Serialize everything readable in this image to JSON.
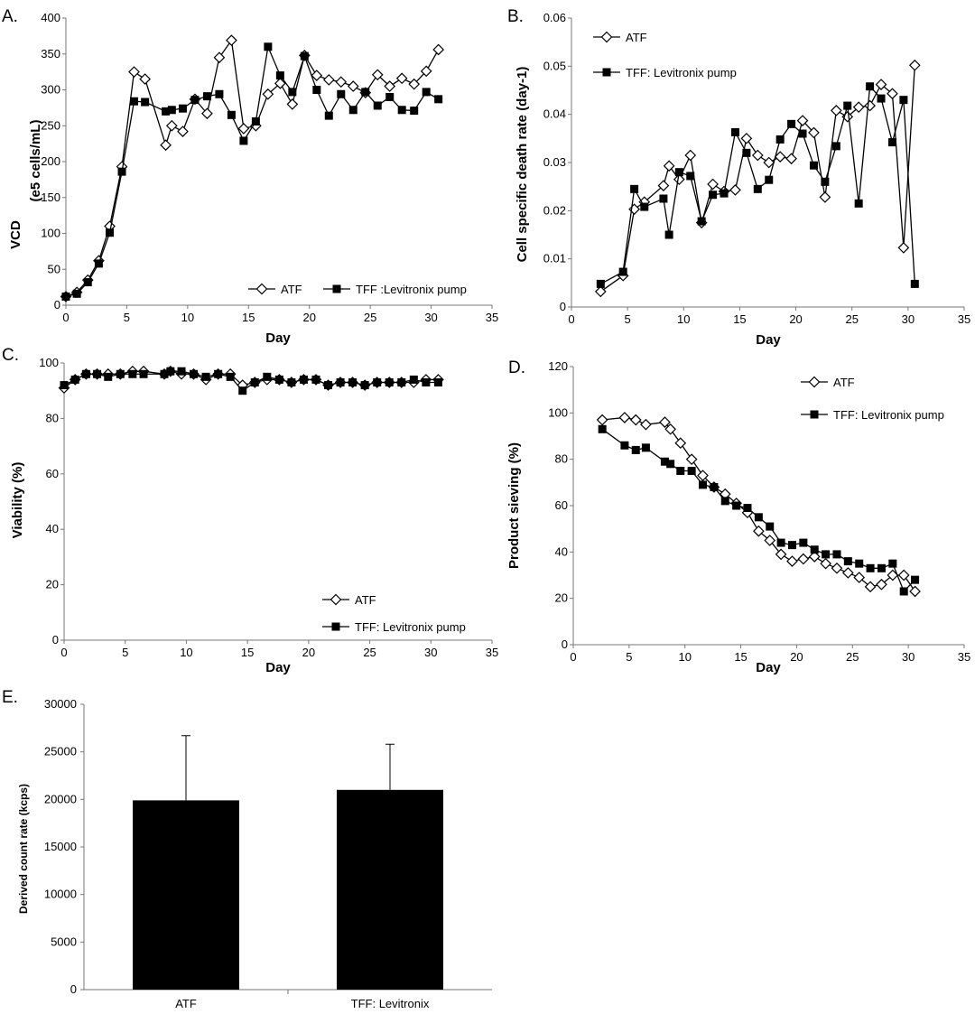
{
  "chart_data": [
    {
      "panel": "A.",
      "type": "line",
      "xlabel": "Day",
      "ylabel": "VCD",
      "ylabel2": "(e5 cells/mL)",
      "xlim": [
        0,
        35
      ],
      "xticks": [
        0,
        5,
        10,
        15,
        20,
        25,
        30,
        35
      ],
      "ylim": [
        0,
        400
      ],
      "yticks": [
        0,
        50,
        100,
        150,
        200,
        250,
        300,
        350,
        400
      ],
      "legend_pos": "bottom-right",
      "legend_layout": "row",
      "series": [
        {
          "name": "ATF",
          "marker": "diamond",
          "x": [
            0,
            0.9,
            1.8,
            2.7,
            3.6,
            4.6,
            5.6,
            6.5,
            8.2,
            8.7,
            9.6,
            10.6,
            11.6,
            12.6,
            13.6,
            14.6,
            15.6,
            16.6,
            17.6,
            18.6,
            19.6,
            20.6,
            21.6,
            22.6,
            23.6,
            24.6,
            25.6,
            26.6,
            27.6,
            28.6,
            29.6,
            30.6
          ],
          "y": [
            12,
            18,
            35,
            62,
            110,
            193,
            325,
            315,
            223,
            250,
            242,
            287,
            267,
            345,
            369,
            246,
            250,
            294,
            309,
            280,
            348,
            320,
            314,
            311,
            305,
            296,
            321,
            305,
            316,
            308,
            326,
            356
          ]
        },
        {
          "name": "TFF :Levitronix pump",
          "marker": "square",
          "x": [
            0,
            0.9,
            1.8,
            2.7,
            3.6,
            4.6,
            5.6,
            6.5,
            8.2,
            8.7,
            9.6,
            10.6,
            11.6,
            12.6,
            13.6,
            14.6,
            15.6,
            16.6,
            17.6,
            18.6,
            19.6,
            20.6,
            21.6,
            22.6,
            23.6,
            24.6,
            25.6,
            26.6,
            27.6,
            28.6,
            29.6,
            30.6
          ],
          "y": [
            12,
            16,
            32,
            58,
            101,
            186,
            284,
            283,
            270,
            272,
            274,
            286,
            291,
            294,
            265,
            229,
            256,
            360,
            320,
            297,
            347,
            300,
            264,
            294,
            272,
            297,
            278,
            290,
            272,
            271,
            297,
            287
          ]
        }
      ]
    },
    {
      "panel": "B.",
      "type": "line",
      "xlabel": "Day",
      "ylabel": "Cell specific death rate (day-1)",
      "xlim": [
        0,
        35
      ],
      "xticks": [
        0,
        5,
        10,
        15,
        20,
        25,
        30,
        35
      ],
      "ylim": [
        0,
        0.06
      ],
      "yticks": [
        0,
        0.01,
        0.02,
        0.03,
        0.04,
        0.05,
        0.06
      ],
      "legend_pos": "top-left",
      "legend_layout": "column",
      "series": [
        {
          "name": "ATF",
          "marker": "diamond",
          "x": [
            2.6,
            4.6,
            5.6,
            6.5,
            8.2,
            8.7,
            9.6,
            10.6,
            11.6,
            12.6,
            13.6,
            14.6,
            15.6,
            16.6,
            17.6,
            18.6,
            19.6,
            20.6,
            21.6,
            22.6,
            23.6,
            24.6,
            25.6,
            26.6,
            27.6,
            28.6,
            29.6,
            30.6
          ],
          "y": [
            0.0032,
            0.0065,
            0.0203,
            0.0218,
            0.0252,
            0.0293,
            0.0265,
            0.0315,
            0.0175,
            0.0255,
            0.024,
            0.0243,
            0.035,
            0.0315,
            0.03,
            0.0312,
            0.0308,
            0.0387,
            0.0362,
            0.0228,
            0.0408,
            0.0395,
            0.0415,
            0.0418,
            0.0462,
            0.0443,
            0.0123,
            0.0502
          ]
        },
        {
          "name": "TFF: Levitronix pump",
          "marker": "square",
          "x": [
            2.6,
            4.6,
            5.6,
            6.5,
            8.2,
            8.7,
            9.6,
            10.6,
            11.6,
            12.6,
            13.6,
            14.6,
            15.6,
            16.6,
            17.6,
            18.6,
            19.6,
            20.6,
            21.6,
            22.6,
            23.6,
            24.6,
            25.6,
            26.6,
            27.6,
            28.6,
            29.6,
            30.6
          ],
          "y": [
            0.0048,
            0.0073,
            0.0245,
            0.0208,
            0.0225,
            0.015,
            0.028,
            0.0272,
            0.0178,
            0.0233,
            0.0236,
            0.0363,
            0.032,
            0.0245,
            0.0264,
            0.0348,
            0.038,
            0.036,
            0.0294,
            0.026,
            0.0334,
            0.0418,
            0.0215,
            0.0458,
            0.0433,
            0.0342,
            0.043,
            0.0048
          ]
        }
      ]
    },
    {
      "panel": "C.",
      "type": "line",
      "xlabel": "Day",
      "ylabel": "Viability (%)",
      "xlim": [
        0,
        35
      ],
      "xticks": [
        0,
        5,
        10,
        15,
        20,
        25,
        30,
        35
      ],
      "ylim": [
        0,
        100
      ],
      "yticks": [
        0,
        20,
        40,
        60,
        80,
        100
      ],
      "legend_pos": "bottom-right",
      "legend_layout": "column",
      "series": [
        {
          "name": "ATF",
          "marker": "diamond",
          "x": [
            0,
            0.9,
            1.8,
            2.7,
            3.6,
            4.6,
            5.6,
            6.5,
            8.2,
            8.7,
            9.6,
            10.6,
            11.6,
            12.6,
            13.6,
            14.6,
            15.6,
            16.6,
            17.6,
            18.6,
            19.6,
            20.6,
            21.6,
            22.6,
            23.6,
            24.6,
            25.6,
            26.6,
            27.6,
            28.6,
            29.6,
            30.6
          ],
          "y": [
            91,
            94,
            96,
            96,
            96,
            96,
            97,
            97,
            96,
            97,
            96,
            96,
            94,
            96,
            96,
            92,
            93,
            94,
            94,
            93,
            94,
            94,
            92,
            93,
            93,
            92,
            93,
            93,
            93,
            93,
            94,
            94
          ]
        },
        {
          "name": "TFF: Levitronix pump",
          "marker": "square",
          "x": [
            0,
            0.9,
            1.8,
            2.7,
            3.6,
            4.6,
            5.6,
            6.5,
            8.2,
            8.7,
            9.6,
            10.6,
            11.6,
            12.6,
            13.6,
            14.6,
            15.6,
            16.6,
            17.6,
            18.6,
            19.6,
            20.6,
            21.6,
            22.6,
            23.6,
            24.6,
            25.6,
            26.6,
            27.6,
            28.6,
            29.6,
            30.6
          ],
          "y": [
            92,
            94,
            96,
            96,
            95,
            96,
            96,
            96,
            96,
            97,
            97,
            96,
            95,
            96,
            95,
            90,
            93,
            95,
            94,
            93,
            94,
            94,
            92,
            93,
            93,
            92,
            93,
            93,
            93,
            94,
            93,
            93
          ]
        }
      ]
    },
    {
      "panel": "D.",
      "type": "line",
      "xlabel": "Day",
      "ylabel": "Product sieving (%)",
      "xlim": [
        0,
        35
      ],
      "xticks": [
        0,
        5,
        10,
        15,
        20,
        25,
        30,
        35
      ],
      "ylim": [
        0,
        120
      ],
      "yticks": [
        0,
        20,
        40,
        60,
        80,
        100,
        120
      ],
      "legend_pos": "top-center",
      "legend_layout": "column",
      "series": [
        {
          "name": "ATF",
          "marker": "diamond",
          "x": [
            2.6,
            4.6,
            5.6,
            6.5,
            8.2,
            8.7,
            9.6,
            10.6,
            11.6,
            12.6,
            13.6,
            14.6,
            15.6,
            16.6,
            17.6,
            18.6,
            19.6,
            20.6,
            21.6,
            22.6,
            23.6,
            24.6,
            25.6,
            26.6,
            27.6,
            28.6,
            29.6,
            30.6
          ],
          "y": [
            97,
            98,
            97,
            95,
            96,
            93,
            87,
            80,
            73,
            68,
            65,
            61,
            57,
            49,
            45,
            39,
            36,
            37,
            38,
            35,
            33,
            31,
            29,
            25,
            26,
            30,
            30,
            23
          ]
        },
        {
          "name": "TFF: Levitronix pump",
          "marker": "square",
          "x": [
            2.6,
            4.6,
            5.6,
            6.5,
            8.2,
            8.7,
            9.6,
            10.6,
            11.6,
            12.6,
            13.6,
            14.6,
            15.6,
            16.6,
            17.6,
            18.6,
            19.6,
            20.6,
            21.6,
            22.6,
            23.6,
            24.6,
            25.6,
            26.6,
            27.6,
            28.6,
            29.6,
            30.6
          ],
          "y": [
            93,
            86,
            84,
            85,
            79,
            78,
            75,
            75,
            69,
            68,
            62,
            60,
            59,
            55,
            51,
            44,
            43,
            44,
            41,
            39,
            39,
            36,
            35,
            33,
            33,
            35,
            23,
            28
          ]
        }
      ]
    },
    {
      "panel": "E.",
      "type": "bar",
      "ylabel": "Derived count rate (kcps)",
      "categories": [
        "ATF",
        "TFF: Levitronix"
      ],
      "values": [
        19900,
        21000
      ],
      "error_plus": [
        6800,
        4800
      ],
      "ylim": [
        0,
        30000
      ],
      "yticks": [
        0,
        5000,
        10000,
        15000,
        20000,
        25000,
        30000
      ],
      "color": "#000000"
    }
  ]
}
